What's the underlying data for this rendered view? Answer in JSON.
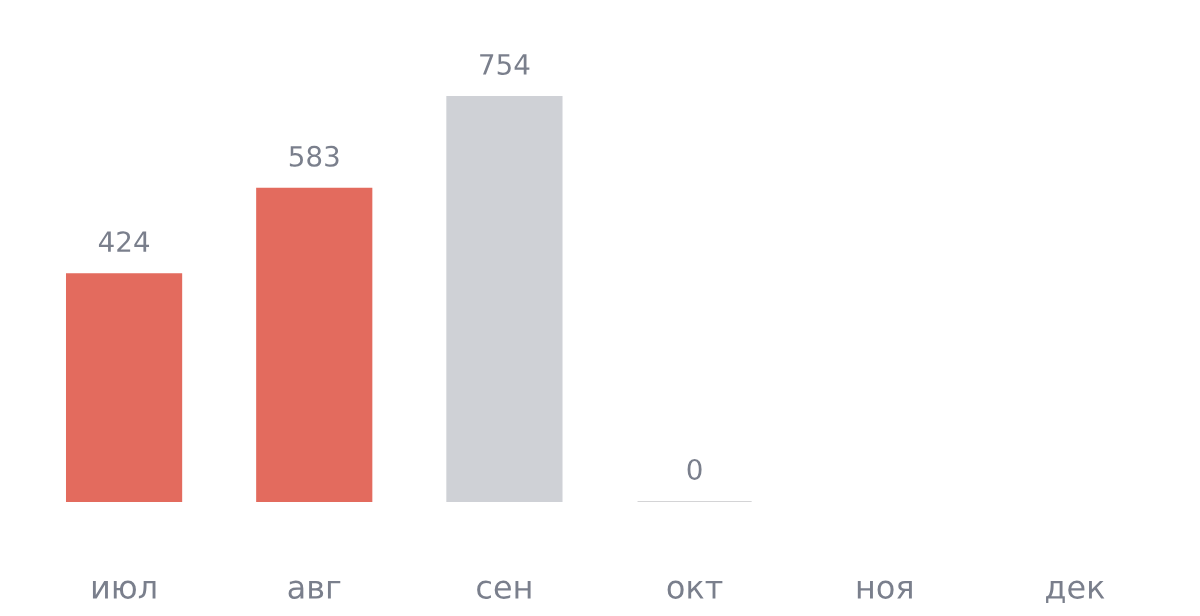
{
  "chart_data": {
    "type": "bar",
    "categories": [
      "июл",
      "авг",
      "сен",
      "окт",
      "ноя",
      "дек"
    ],
    "values": [
      424,
      583,
      754,
      0,
      null,
      null
    ],
    "colors": [
      "#e36b5e",
      "#e36b5e",
      "#cfd1d6",
      "#d4d4d6",
      "#ffffff",
      "#ffffff"
    ],
    "data_labels": true,
    "grid": false,
    "legend": false,
    "tick_labels": "x"
  }
}
